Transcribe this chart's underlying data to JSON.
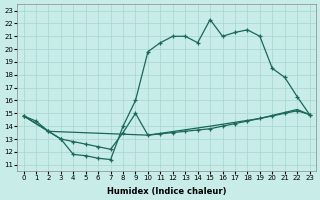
{
  "xlabel": "Humidex (Indice chaleur)",
  "bg_color": "#c8ece8",
  "grid_color": "#a8d4d0",
  "line_color": "#1a6858",
  "xlim": [
    -0.5,
    23.5
  ],
  "ylim": [
    10.5,
    23.5
  ],
  "yticks": [
    11,
    12,
    13,
    14,
    15,
    16,
    17,
    18,
    19,
    20,
    21,
    22,
    23
  ],
  "xticks": [
    0,
    1,
    2,
    3,
    4,
    5,
    6,
    7,
    8,
    9,
    10,
    11,
    12,
    13,
    14,
    15,
    16,
    17,
    18,
    19,
    20,
    21,
    22,
    23
  ],
  "line1_x": [
    0,
    1,
    2,
    3,
    4,
    5,
    6,
    7,
    8,
    9,
    10,
    11,
    12,
    13,
    14,
    15,
    16,
    17,
    18,
    19,
    20,
    21,
    22,
    23
  ],
  "line1_y": [
    14.8,
    14.4,
    13.6,
    13.0,
    11.8,
    11.7,
    11.5,
    11.4,
    14.0,
    16.0,
    19.8,
    20.5,
    21.0,
    21.0,
    20.5,
    22.3,
    21.0,
    21.3,
    21.5,
    21.0,
    18.5,
    17.8,
    16.3,
    14.9
  ],
  "line2_x": [
    0,
    2,
    3,
    4,
    5,
    6,
    7,
    8,
    9,
    10,
    11,
    12,
    13,
    14,
    15,
    16,
    17,
    18,
    19,
    20,
    21,
    22,
    23
  ],
  "line2_y": [
    14.8,
    13.6,
    13.0,
    12.8,
    12.6,
    12.4,
    12.2,
    13.5,
    15.0,
    13.3,
    13.4,
    13.5,
    13.6,
    13.7,
    13.8,
    14.0,
    14.2,
    14.4,
    14.6,
    14.8,
    15.0,
    15.2,
    14.9
  ],
  "line3_x": [
    0,
    23
  ],
  "line3_y": [
    14.8,
    14.9
  ],
  "line3_via_x": [
    0,
    2,
    10,
    15,
    19,
    22,
    23
  ],
  "line3_via_y": [
    14.8,
    13.6,
    13.3,
    14.0,
    14.6,
    15.3,
    14.9
  ]
}
